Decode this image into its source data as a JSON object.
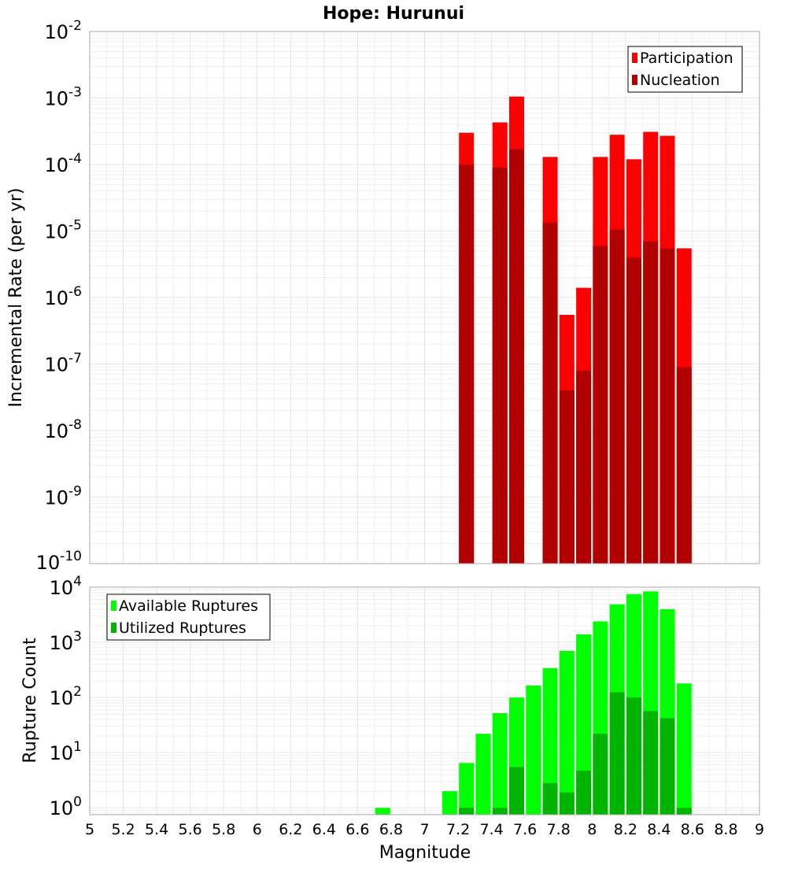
{
  "title": "Hope: Hurunui",
  "xlabel": "Magnitude",
  "colors": {
    "participation": "#ff0000",
    "nucleation": "#b00000",
    "available": "#00ff00",
    "utilized": "#00b400",
    "grid": "#e6e6e6",
    "frame": "#aaaaaa"
  },
  "chart_data": [
    {
      "type": "bar",
      "log_scale": true,
      "ylabel": "Incremental Rate (per yr)",
      "xlim": [
        5,
        9
      ],
      "ylim": [
        1e-10,
        0.01
      ],
      "y_tick_exponents": [
        -10,
        -9,
        -8,
        -7,
        -6,
        -5,
        -4,
        -3,
        -2
      ],
      "grid": true,
      "legend_position": "top-right",
      "x": [
        7.25,
        7.45,
        7.55,
        7.75,
        7.85,
        7.95,
        8.05,
        8.15,
        8.25,
        8.35,
        8.45,
        8.55
      ],
      "series": [
        {
          "name": "Participation",
          "values": [
            0.0003,
            0.00043,
            0.00105,
            0.00013,
            5.5e-07,
            1.4e-06,
            0.00013,
            0.00028,
            0.00012,
            0.00031,
            0.00027,
            5.5e-06
          ]
        },
        {
          "name": "Nucleation",
          "values": [
            0.0001,
            9e-05,
            0.00017,
            1.35e-05,
            4e-08,
            8e-08,
            6e-06,
            1.05e-05,
            4e-06,
            7e-06,
            5.5e-06,
            9e-08
          ]
        }
      ]
    },
    {
      "type": "bar",
      "log_scale": true,
      "ylabel": "Rupture Count",
      "xlim": [
        5,
        9
      ],
      "ylim": [
        0.75,
        10000.0
      ],
      "y_tick_exponents": [
        0,
        1,
        2,
        3,
        4
      ],
      "x_ticks": [
        "5",
        "5.2",
        "5.4",
        "5.6",
        "5.8",
        "6",
        "6.2",
        "6.4",
        "6.6",
        "6.8",
        "7",
        "7.2",
        "7.4",
        "7.6",
        "7.8",
        "8",
        "8.2",
        "8.4",
        "8.6",
        "8.8",
        "9"
      ],
      "grid": true,
      "legend_position": "top-left",
      "x": [
        6.75,
        7.15,
        7.25,
        7.35,
        7.45,
        7.55,
        7.65,
        7.75,
        7.85,
        7.95,
        8.05,
        8.15,
        8.25,
        8.35,
        8.45,
        8.55
      ],
      "series": [
        {
          "name": "Available Ruptures",
          "values": [
            1,
            2,
            6.5,
            22,
            52,
            100,
            165,
            340,
            700,
            1400,
            2400,
            4900,
            7500,
            8400,
            4000,
            180
          ]
        },
        {
          "name": "Utilized Ruptures",
          "values": [
            0,
            0,
            1,
            0,
            1,
            5.5,
            0,
            2.8,
            1.9,
            4.7,
            22,
            125,
            100,
            57,
            42,
            1
          ]
        }
      ]
    }
  ]
}
